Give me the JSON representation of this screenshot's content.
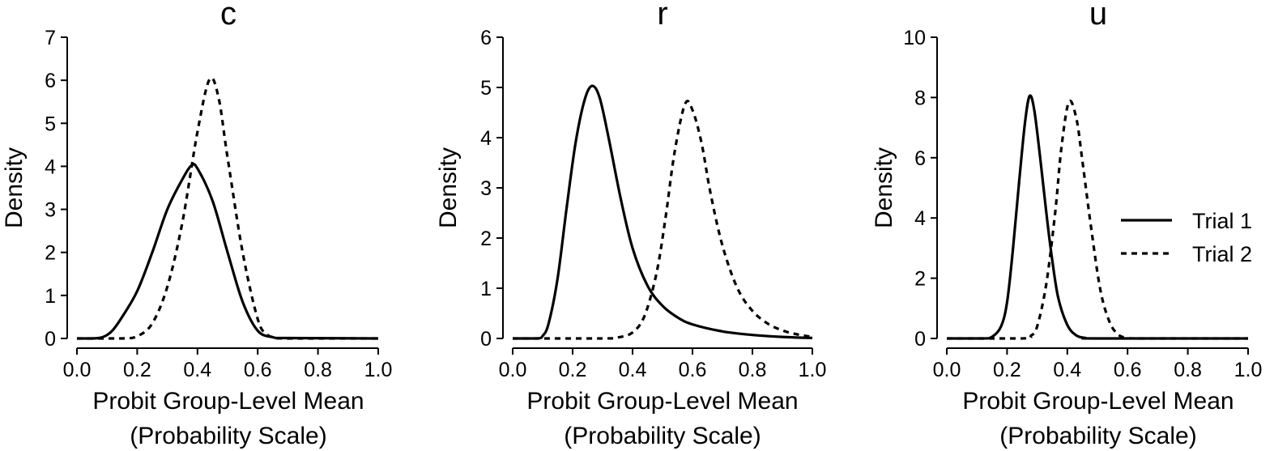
{
  "chart_data": [
    {
      "type": "line",
      "title": "c",
      "xlabel_line1": "Probit Group-Level Mean",
      "xlabel_line2": "(Probability Scale)",
      "ylabel": "Density",
      "xlim": [
        0,
        1
      ],
      "ylim": [
        0,
        7
      ],
      "xticks": [
        "0.0",
        "0.2",
        "0.4",
        "0.6",
        "0.8",
        "1.0"
      ],
      "yticks": [
        "0",
        "1",
        "2",
        "3",
        "4",
        "5",
        "6",
        "7"
      ],
      "series": [
        {
          "name": "Trial 1",
          "style": "solid",
          "points": [
            [
              0.0,
              0
            ],
            [
              0.05,
              0
            ],
            [
              0.08,
              0.02
            ],
            [
              0.1,
              0.08
            ],
            [
              0.12,
              0.2
            ],
            [
              0.15,
              0.5
            ],
            [
              0.2,
              1.1
            ],
            [
              0.25,
              2.0
            ],
            [
              0.3,
              3.0
            ],
            [
              0.35,
              3.7
            ],
            [
              0.38,
              4.02
            ],
            [
              0.4,
              3.95
            ],
            [
              0.45,
              3.2
            ],
            [
              0.5,
              2.0
            ],
            [
              0.55,
              0.85
            ],
            [
              0.6,
              0.18
            ],
            [
              0.65,
              0.03
            ],
            [
              0.7,
              0.01
            ],
            [
              1.0,
              0
            ]
          ]
        },
        {
          "name": "Trial 2",
          "style": "dashed",
          "points": [
            [
              0.0,
              0
            ],
            [
              0.15,
              0
            ],
            [
              0.2,
              0.05
            ],
            [
              0.25,
              0.35
            ],
            [
              0.3,
              1.2
            ],
            [
              0.35,
              2.7
            ],
            [
              0.4,
              4.8
            ],
            [
              0.44,
              6.02
            ],
            [
              0.47,
              5.6
            ],
            [
              0.5,
              4.2
            ],
            [
              0.55,
              2.0
            ],
            [
              0.6,
              0.45
            ],
            [
              0.63,
              0.1
            ],
            [
              0.66,
              0.02
            ],
            [
              0.7,
              0
            ],
            [
              1.0,
              0
            ]
          ]
        }
      ]
    },
    {
      "type": "line",
      "title": "r",
      "xlabel_line1": "Probit Group-Level Mean",
      "xlabel_line2": "(Probability Scale)",
      "ylabel": "Density",
      "xlim": [
        0,
        1
      ],
      "ylim": [
        0,
        6
      ],
      "xticks": [
        "0.0",
        "0.2",
        "0.4",
        "0.6",
        "0.8",
        "1.0"
      ],
      "yticks": [
        "0",
        "1",
        "2",
        "3",
        "4",
        "5",
        "6"
      ],
      "series": [
        {
          "name": "Trial 1",
          "style": "solid",
          "points": [
            [
              0.0,
              0
            ],
            [
              0.08,
              0
            ],
            [
              0.1,
              0.05
            ],
            [
              0.12,
              0.3
            ],
            [
              0.15,
              1.2
            ],
            [
              0.18,
              2.6
            ],
            [
              0.21,
              3.9
            ],
            [
              0.24,
              4.75
            ],
            [
              0.265,
              5.03
            ],
            [
              0.29,
              4.8
            ],
            [
              0.32,
              4.0
            ],
            [
              0.36,
              2.8
            ],
            [
              0.4,
              1.8
            ],
            [
              0.45,
              1.05
            ],
            [
              0.5,
              0.65
            ],
            [
              0.55,
              0.42
            ],
            [
              0.6,
              0.28
            ],
            [
              0.7,
              0.14
            ],
            [
              0.8,
              0.07
            ],
            [
              0.9,
              0.03
            ],
            [
              1.0,
              0.01
            ]
          ]
        },
        {
          "name": "Trial 2",
          "style": "dashed",
          "points": [
            [
              0.0,
              0
            ],
            [
              0.3,
              0
            ],
            [
              0.35,
              0.02
            ],
            [
              0.4,
              0.12
            ],
            [
              0.44,
              0.45
            ],
            [
              0.48,
              1.3
            ],
            [
              0.51,
              2.4
            ],
            [
              0.54,
              3.7
            ],
            [
              0.575,
              4.67
            ],
            [
              0.6,
              4.55
            ],
            [
              0.63,
              3.9
            ],
            [
              0.66,
              2.9
            ],
            [
              0.7,
              1.85
            ],
            [
              0.75,
              1.0
            ],
            [
              0.8,
              0.55
            ],
            [
              0.85,
              0.3
            ],
            [
              0.9,
              0.16
            ],
            [
              0.95,
              0.08
            ],
            [
              1.0,
              0.03
            ]
          ]
        }
      ]
    },
    {
      "type": "line",
      "title": "u",
      "xlabel_line1": "Probit Group-Level Mean",
      "xlabel_line2": "(Probability Scale)",
      "ylabel": "Density",
      "xlim": [
        0,
        1
      ],
      "ylim": [
        0,
        10
      ],
      "xticks": [
        "0.0",
        "0.2",
        "0.4",
        "0.6",
        "0.8",
        "1.0"
      ],
      "yticks": [
        "0",
        "2",
        "4",
        "6",
        "8",
        "10"
      ],
      "legend": {
        "placement": "right",
        "entries": [
          {
            "label": "Trial 1",
            "style": "solid"
          },
          {
            "label": "Trial 2",
            "style": "dashed"
          }
        ]
      },
      "series": [
        {
          "name": "Trial 1",
          "style": "solid",
          "points": [
            [
              0.0,
              0
            ],
            [
              0.12,
              0
            ],
            [
              0.15,
              0.05
            ],
            [
              0.18,
              0.4
            ],
            [
              0.2,
              1.2
            ],
            [
              0.22,
              3.0
            ],
            [
              0.24,
              5.2
            ],
            [
              0.26,
              7.2
            ],
            [
              0.275,
              8.05
            ],
            [
              0.29,
              7.6
            ],
            [
              0.31,
              6.0
            ],
            [
              0.33,
              4.2
            ],
            [
              0.35,
              2.6
            ],
            [
              0.37,
              1.35
            ],
            [
              0.4,
              0.45
            ],
            [
              0.43,
              0.1
            ],
            [
              0.46,
              0.02
            ],
            [
              0.5,
              0
            ],
            [
              1.0,
              0
            ]
          ]
        },
        {
          "name": "Trial 2",
          "style": "dashed",
          "points": [
            [
              0.0,
              0
            ],
            [
              0.25,
              0
            ],
            [
              0.28,
              0.1
            ],
            [
              0.3,
              0.4
            ],
            [
              0.33,
              1.8
            ],
            [
              0.36,
              4.2
            ],
            [
              0.38,
              6.3
            ],
            [
              0.405,
              7.85
            ],
            [
              0.43,
              7.3
            ],
            [
              0.45,
              5.9
            ],
            [
              0.48,
              3.6
            ],
            [
              0.51,
              1.6
            ],
            [
              0.54,
              0.55
            ],
            [
              0.57,
              0.12
            ],
            [
              0.6,
              0.02
            ],
            [
              0.65,
              0
            ],
            [
              1.0,
              0
            ]
          ]
        }
      ]
    }
  ]
}
